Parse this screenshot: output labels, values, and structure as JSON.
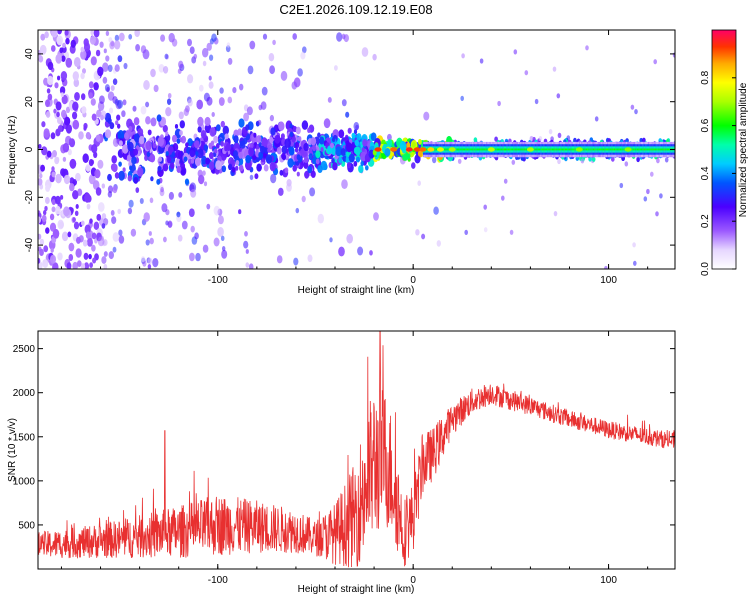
{
  "title": "C2E1.2026.109.12.19.E08",
  "chart_data": [
    {
      "type": "heatmap",
      "title": "C2E1.2026.109.12.19.E08",
      "xlabel": "Height of straight line (km)",
      "ylabel": "Frequency (Hz)",
      "xlim": [
        -192,
        134
      ],
      "ylim": [
        -50,
        50
      ],
      "xticks": [
        -100,
        0,
        100
      ],
      "yticks": [
        -40,
        -20,
        0,
        20,
        40
      ],
      "xtick_labels": [
        "-100",
        "0",
        "100"
      ],
      "ytick_labels": [
        "-40",
        "-20",
        "0",
        "20",
        "40"
      ],
      "grid": false,
      "description_of_field": [
        {
          "x_range": [
            -192,
            -160
          ],
          "freq_spread_hz": 50,
          "mean_amplitude": 0.2
        },
        {
          "x_range": [
            -160,
            -100
          ],
          "freq_spread_hz": 10,
          "mean_amplitude": 0.3
        },
        {
          "x_range": [
            -100,
            -50
          ],
          "freq_spread_hz": 8,
          "mean_amplitude": 0.3
        },
        {
          "x_range": [
            -50,
            -20
          ],
          "freq_spread_hz": 6,
          "mean_amplitude": 0.4
        },
        {
          "x_range": [
            -20,
            20
          ],
          "freq_spread_hz": 3,
          "mean_amplitude": 0.7
        },
        {
          "x_range": [
            20,
            134
          ],
          "freq_spread_hz": 3,
          "mean_amplitude": 0.45
        }
      ],
      "colorbar": {
        "label": "Normalized spectral amplitude",
        "range": [
          0.0,
          1.0
        ],
        "ticks": [
          0.0,
          0.2,
          0.4,
          0.6,
          0.8
        ],
        "tick_labels": [
          "0.0",
          "0.2",
          "0.4",
          "0.6",
          "0.8"
        ],
        "colormap": "rainbow-white"
      }
    },
    {
      "type": "line",
      "xlabel": "Height of straight line (km)",
      "ylabel": "SNR (10 * v/v)",
      "xlim": [
        -192,
        134
      ],
      "ylim": [
        0,
        2700
      ],
      "xticks": [
        -100,
        0,
        100
      ],
      "yticks": [
        500,
        1000,
        1500,
        2000,
        2500
      ],
      "xtick_labels": [
        "-100",
        "0",
        "100"
      ],
      "ytick_labels": [
        "500",
        "1000",
        "1500",
        "2000",
        "2500"
      ],
      "grid": false,
      "series": [
        {
          "name": "SNR",
          "color": "#e83030",
          "x": [
            -192,
            -170,
            -150,
            -120,
            -100,
            -80,
            -60,
            -50,
            -40,
            -30,
            -25,
            -20,
            -15,
            -10,
            -5,
            0,
            5,
            10,
            15,
            20,
            30,
            40,
            45,
            60,
            80,
            100,
            120,
            134
          ],
          "y": [
            270,
            300,
            340,
            420,
            500,
            480,
            430,
            350,
            400,
            600,
            900,
            1200,
            1300,
            1000,
            400,
            600,
            1200,
            1300,
            1500,
            1700,
            1900,
            2000,
            1950,
            1850,
            1700,
            1580,
            1500,
            1450
          ],
          "noise_amplitude": [
            150,
            180,
            220,
            300,
            350,
            300,
            250,
            200,
            350,
            600,
            800,
            900,
            800,
            700,
            400,
            400,
            350,
            300,
            250,
            180,
            150,
            130,
            120,
            110,
            100,
            100,
            100,
            100
          ]
        }
      ],
      "peaks": [
        {
          "x": -17,
          "y": 2700
        },
        {
          "x": -127,
          "y": 1570
        }
      ]
    }
  ]
}
